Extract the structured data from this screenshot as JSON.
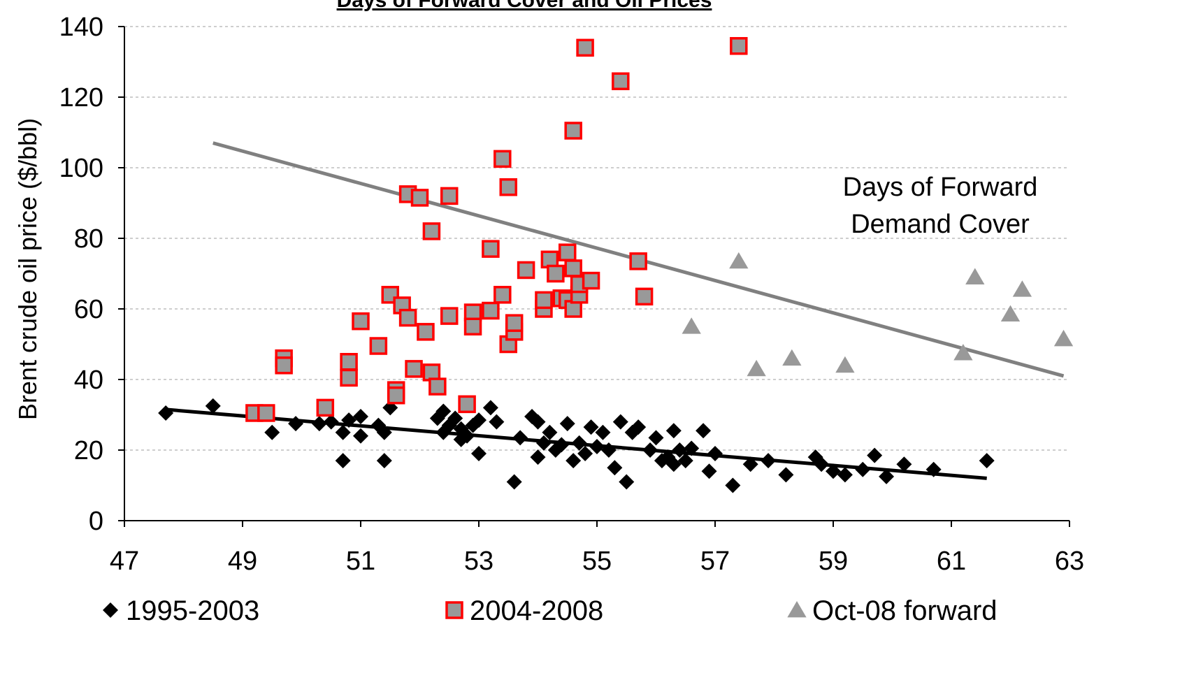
{
  "chart_data": {
    "type": "scatter",
    "title": "Days of Forward Cover and Oil Prices",
    "xlabel": "",
    "ylabel": "Brent crude oil price ($/bbl)",
    "xlim": [
      47,
      63
    ],
    "ylim": [
      0,
      140
    ],
    "x_ticks": [
      47,
      49,
      51,
      53,
      55,
      57,
      59,
      61,
      63
    ],
    "y_ticks": [
      0,
      20,
      40,
      60,
      80,
      100,
      120,
      140
    ],
    "grid": "horizontal dashed",
    "legend_position": "bottom",
    "annotation": [
      "Days of Forward",
      "Demand Cover"
    ],
    "series": [
      {
        "name": "1995-2003",
        "marker": "diamond",
        "color": "#000000",
        "points": [
          [
            47.7,
            30.5
          ],
          [
            48.5,
            32.5
          ],
          [
            49.5,
            25
          ],
          [
            49.9,
            27.5
          ],
          [
            50.3,
            27.5
          ],
          [
            50.5,
            28
          ],
          [
            50.7,
            25
          ],
          [
            50.7,
            17
          ],
          [
            50.8,
            28.5
          ],
          [
            51.0,
            29.5
          ],
          [
            51.0,
            24
          ],
          [
            51.3,
            27
          ],
          [
            51.4,
            17
          ],
          [
            51.4,
            25
          ],
          [
            51.5,
            32
          ],
          [
            52.3,
            29
          ],
          [
            52.4,
            25
          ],
          [
            52.4,
            31
          ],
          [
            52.5,
            27
          ],
          [
            52.6,
            29
          ],
          [
            52.7,
            26
          ],
          [
            52.7,
            23
          ],
          [
            52.8,
            24
          ],
          [
            52.9,
            27
          ],
          [
            53.0,
            19
          ],
          [
            53.0,
            28.5
          ],
          [
            53.2,
            32
          ],
          [
            53.3,
            28
          ],
          [
            53.6,
            11
          ],
          [
            53.7,
            23.5
          ],
          [
            53.9,
            29.5
          ],
          [
            54.0,
            28
          ],
          [
            54.0,
            18
          ],
          [
            54.1,
            22
          ],
          [
            54.2,
            25
          ],
          [
            54.3,
            20
          ],
          [
            54.4,
            21.5
          ],
          [
            54.5,
            27.5
          ],
          [
            54.6,
            17
          ],
          [
            54.7,
            22
          ],
          [
            54.8,
            19
          ],
          [
            54.9,
            26.5
          ],
          [
            55.0,
            21
          ],
          [
            55.1,
            25
          ],
          [
            55.2,
            20
          ],
          [
            55.3,
            15
          ],
          [
            55.4,
            28
          ],
          [
            55.5,
            11
          ],
          [
            55.6,
            25
          ],
          [
            55.7,
            26.5
          ],
          [
            55.9,
            20
          ],
          [
            56.0,
            23.5
          ],
          [
            56.1,
            17
          ],
          [
            56.2,
            18
          ],
          [
            56.3,
            16
          ],
          [
            56.3,
            25.5
          ],
          [
            56.4,
            20
          ],
          [
            56.5,
            17
          ],
          [
            56.6,
            20.5
          ],
          [
            56.8,
            25.5
          ],
          [
            56.9,
            14
          ],
          [
            57.0,
            19
          ],
          [
            57.3,
            10
          ],
          [
            57.6,
            16
          ],
          [
            57.9,
            17
          ],
          [
            58.2,
            13
          ],
          [
            58.7,
            18
          ],
          [
            58.8,
            16
          ],
          [
            59.0,
            14
          ],
          [
            59.2,
            13
          ],
          [
            59.5,
            14.5
          ],
          [
            59.7,
            18.5
          ],
          [
            59.9,
            12.5
          ],
          [
            60.2,
            16
          ],
          [
            60.7,
            14.5
          ],
          [
            61.6,
            17
          ]
        ]
      },
      {
        "name": "2004-2008",
        "marker": "square",
        "color": "#ff0000",
        "fill": "#999999",
        "points": [
          [
            49.2,
            30.5
          ],
          [
            49.4,
            30.5
          ],
          [
            49.7,
            46
          ],
          [
            49.7,
            44
          ],
          [
            50.4,
            32
          ],
          [
            50.8,
            40.5
          ],
          [
            50.8,
            45
          ],
          [
            51.0,
            56.5
          ],
          [
            51.3,
            49.5
          ],
          [
            51.5,
            64
          ],
          [
            51.6,
            37
          ],
          [
            51.6,
            35.5
          ],
          [
            51.7,
            61
          ],
          [
            51.8,
            57.5
          ],
          [
            51.8,
            92.5
          ],
          [
            51.9,
            43
          ],
          [
            52.0,
            91.5
          ],
          [
            52.1,
            53.5
          ],
          [
            52.2,
            42
          ],
          [
            52.2,
            82
          ],
          [
            52.3,
            38
          ],
          [
            52.5,
            58
          ],
          [
            52.5,
            92
          ],
          [
            52.8,
            33
          ],
          [
            52.9,
            59
          ],
          [
            52.9,
            55
          ],
          [
            53.2,
            59.5
          ],
          [
            53.2,
            77
          ],
          [
            53.4,
            102.5
          ],
          [
            53.4,
            64
          ],
          [
            53.5,
            50
          ],
          [
            53.5,
            94.5
          ],
          [
            53.6,
            53.5
          ],
          [
            53.6,
            56
          ],
          [
            53.8,
            71
          ],
          [
            54.1,
            60
          ],
          [
            54.1,
            62.5
          ],
          [
            54.2,
            74
          ],
          [
            54.3,
            70
          ],
          [
            54.4,
            63
          ],
          [
            54.5,
            62.5
          ],
          [
            54.5,
            76
          ],
          [
            54.6,
            60
          ],
          [
            54.6,
            71.5
          ],
          [
            54.6,
            110.5
          ],
          [
            54.7,
            64
          ],
          [
            54.7,
            67
          ],
          [
            54.8,
            134
          ],
          [
            54.9,
            68
          ],
          [
            55.4,
            124.5
          ],
          [
            55.7,
            73.5
          ],
          [
            55.8,
            63.5
          ],
          [
            57.4,
            134.5
          ]
        ]
      },
      {
        "name": "Oct-08 forward",
        "marker": "triangle",
        "color": "#999999",
        "points": [
          [
            56.6,
            55
          ],
          [
            57.4,
            73.5
          ],
          [
            57.7,
            43
          ],
          [
            58.3,
            46
          ],
          [
            59.2,
            44
          ],
          [
            61.2,
            47.5
          ],
          [
            61.4,
            69
          ],
          [
            62.0,
            58.5
          ],
          [
            62.2,
            65.5
          ],
          [
            62.9,
            51.5
          ]
        ]
      }
    ],
    "trendlines": [
      {
        "series": "1995-2003",
        "color": "#000000",
        "from": [
          47.7,
          31.5
        ],
        "to": [
          61.6,
          12
        ]
      },
      {
        "series": "Oct-08 forward",
        "color": "#808080",
        "from": [
          48.5,
          107
        ],
        "to": [
          62.9,
          41
        ]
      }
    ]
  }
}
